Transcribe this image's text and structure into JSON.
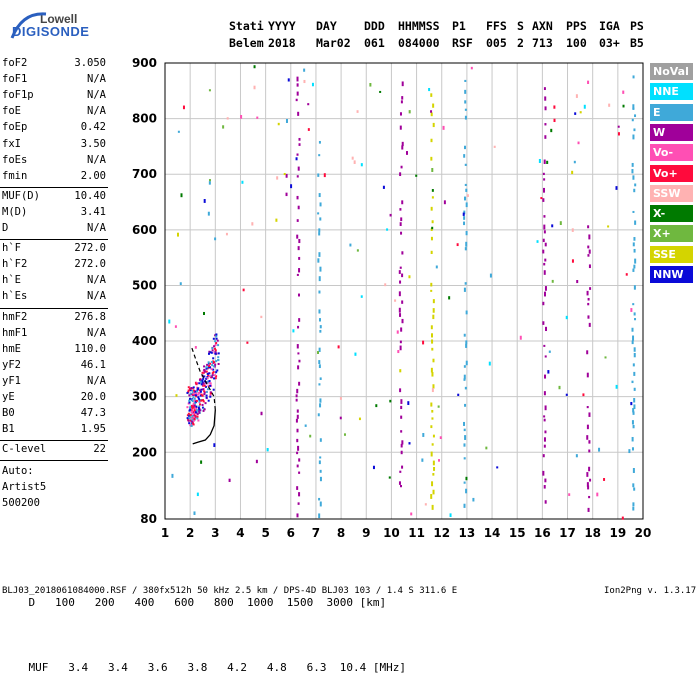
{
  "logo": {
    "brand": "Lowell",
    "product": "DIGISONDE"
  },
  "header": {
    "labels": [
      "Stati",
      "YYYY",
      "DAY",
      "DDD",
      "HHMMSS",
      "P1",
      "FFS",
      "S",
      "AXN",
      "PPS",
      "IGA",
      "PS"
    ],
    "values": [
      "Belem",
      "2018",
      "Mar02",
      "061",
      "084000",
      "RSF",
      "005",
      "2",
      "713",
      "100",
      "03+",
      "B5"
    ]
  },
  "params": {
    "group1": [
      {
        "name": "foF2",
        "value": "3.050"
      },
      {
        "name": "foF1",
        "value": "N/A"
      },
      {
        "name": "foF1p",
        "value": "N/A"
      },
      {
        "name": "foE",
        "value": "N/A"
      },
      {
        "name": "foEp",
        "value": "0.42"
      },
      {
        "name": "fxI",
        "value": "3.50"
      },
      {
        "name": "foEs",
        "value": "N/A"
      },
      {
        "name": "fmin",
        "value": "2.00"
      }
    ],
    "group2": [
      {
        "name": "MUF(D)",
        "value": "10.40"
      },
      {
        "name": "M(D)",
        "value": "3.41"
      },
      {
        "name": "D",
        "value": "N/A"
      }
    ],
    "group3": [
      {
        "name": "h`F",
        "value": "272.0"
      },
      {
        "name": "h`F2",
        "value": "272.0"
      },
      {
        "name": "h`E",
        "value": "N/A"
      },
      {
        "name": "h`Es",
        "value": "N/A"
      }
    ],
    "group4": [
      {
        "name": "hmF2",
        "value": "276.8"
      },
      {
        "name": "hmF1",
        "value": "N/A"
      },
      {
        "name": "hmE",
        "value": "110.0"
      },
      {
        "name": "yF2",
        "value": "46.1"
      },
      {
        "name": "yF1",
        "value": "N/A"
      },
      {
        "name": "yE",
        "value": "20.0"
      },
      {
        "name": "B0",
        "value": "47.3"
      },
      {
        "name": "B1",
        "value": "1.95"
      }
    ],
    "group5": [
      {
        "name": "C-level",
        "value": "22"
      }
    ]
  },
  "autoscaling": {
    "line1": "Auto:",
    "line2": "Artist5",
    "line3": "500200"
  },
  "legend": [
    {
      "label": "NoVal",
      "color": "#a0a0a0"
    },
    {
      "label": "NNE",
      "color": "#00e0ff"
    },
    {
      "label": "E",
      "color": "#3fa9d9"
    },
    {
      "label": "W",
      "color": "#a0009a"
    },
    {
      "label": "Vo-",
      "color": "#ff4fb4"
    },
    {
      "label": "Vo+",
      "color": "#ff0a3c"
    },
    {
      "label": "SSW",
      "color": "#ffb2b2"
    },
    {
      "label": "X-",
      "color": "#007a00"
    },
    {
      "label": "X+",
      "color": "#6fb83f"
    },
    {
      "label": "SSE",
      "color": "#d4d400"
    },
    {
      "label": "NNW",
      "color": "#0a0ad8"
    }
  ],
  "footer": {
    "d_label": "D",
    "d_values": [
      "100",
      "200",
      "400",
      "600",
      "800",
      "1000",
      "1500",
      "3000"
    ],
    "d_unit": "[km]",
    "muf_label": "MUF",
    "muf_values": [
      "3.4",
      "3.4",
      "3.6",
      "3.8",
      "4.2",
      "4.8",
      "6.3",
      "10.4"
    ],
    "muf_unit": "[MHz]",
    "info": "BLJ03_2018061084000.RSF / 380fx512h 50 kHz 2.5 km / DPS-4D BLJ03 103 / 1.4 S 311.6 E",
    "version": "Ion2Png v. 1.3.17"
  },
  "chart_data": {
    "type": "scatter",
    "title": "",
    "xlabel": "",
    "ylabel": "",
    "xlim": [
      1,
      20
    ],
    "ylim": [
      80,
      900
    ],
    "x_ticks": [
      1,
      2,
      3,
      4,
      5,
      6,
      7,
      8,
      9,
      10,
      11,
      12,
      13,
      14,
      15,
      16,
      17,
      18,
      19,
      20
    ],
    "y_ticks": [
      80,
      200,
      300,
      400,
      500,
      600,
      700,
      800,
      900
    ],
    "grid": true,
    "legend_position": "right",
    "profile_curve": {
      "x": [
        2.1,
        2.3,
        2.6,
        2.8,
        2.95,
        3.0,
        2.95,
        2.7,
        2.4,
        2.2,
        2.05
      ],
      "y": [
        215,
        218,
        222,
        232,
        248,
        276,
        300,
        320,
        345,
        370,
        390
      ]
    },
    "trace": {
      "x": [
        1.95,
        2.0,
        2.05,
        2.1,
        2.15,
        2.2,
        2.3,
        2.4,
        2.5,
        2.6,
        2.7,
        2.8,
        2.9,
        3.0
      ],
      "y": [
        272,
        270,
        268,
        272,
        275,
        278,
        285,
        292,
        300,
        310,
        320,
        335,
        350,
        365
      ]
    },
    "echo_columns": [
      {
        "x": 6.25,
        "y_range": [
          90,
          890
        ],
        "series": "W"
      },
      {
        "x": 7.1,
        "y_range": [
          90,
          780
        ],
        "series": "E"
      },
      {
        "x": 10.35,
        "y_range": [
          120,
          880
        ],
        "series": "W"
      },
      {
        "x": 11.6,
        "y_range": [
          90,
          850
        ],
        "series": "SSE"
      },
      {
        "x": 12.9,
        "y_range": [
          100,
          870
        ],
        "series": "E"
      },
      {
        "x": 16.05,
        "y_range": [
          100,
          880
        ],
        "series": "W"
      },
      {
        "x": 17.8,
        "y_range": [
          100,
          640
        ],
        "series": "W"
      },
      {
        "x": 19.6,
        "y_range": [
          90,
          880
        ],
        "series": "E"
      }
    ]
  }
}
